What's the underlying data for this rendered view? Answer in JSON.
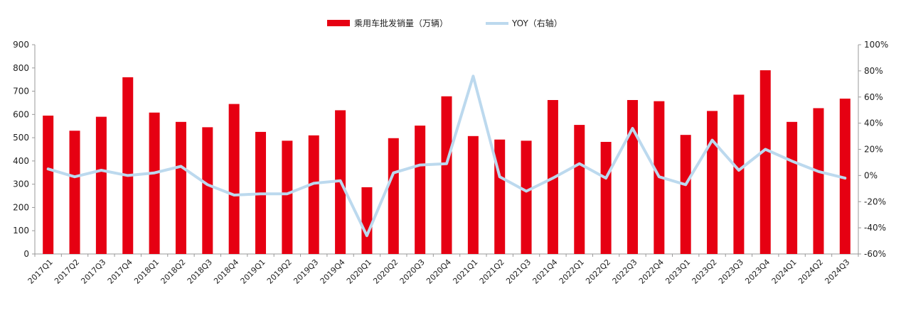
{
  "chart_data": {
    "type": "bar",
    "legend": {
      "placement": "top-center",
      "entries": [
        {
          "label": "乘用车批发销量（万辆）",
          "kind": "bar",
          "color": "#e60012"
        },
        {
          "label": "YOY（右轴）",
          "kind": "line",
          "color": "#bcd9ee"
        }
      ]
    },
    "categories": [
      "2017Q1",
      "2017Q2",
      "2017Q3",
      "2017Q4",
      "2018Q1",
      "2018Q2",
      "2018Q3",
      "2018Q4",
      "2019Q1",
      "2019Q2",
      "2019Q3",
      "2019Q4",
      "2020Q1",
      "2020Q2",
      "2020Q3",
      "2020Q4",
      "2021Q1",
      "2021Q2",
      "2021Q3",
      "2021Q4",
      "2022Q1",
      "2022Q2",
      "2022Q3",
      "2022Q4",
      "2023Q1",
      "2023Q2",
      "2023Q3",
      "2023Q4",
      "2024Q1",
      "2024Q2",
      "2024Q3"
    ],
    "series": [
      {
        "name": "乘用车批发销量（万辆）",
        "type": "bar",
        "axis": "left",
        "color": "#e60012",
        "values": [
          595,
          530,
          590,
          760,
          608,
          568,
          545,
          645,
          525,
          487,
          510,
          618,
          287,
          498,
          552,
          678,
          507,
          492,
          487,
          662,
          555,
          482,
          662,
          657,
          512,
          615,
          685,
          790,
          568,
          627,
          668
        ]
      },
      {
        "name": "YOY（右轴）",
        "type": "line",
        "axis": "right",
        "color": "#bcd9ee",
        "values": [
          5,
          -1,
          4,
          0,
          2,
          7,
          -7,
          -15,
          -14,
          -14,
          -6,
          -4,
          -46,
          2,
          8,
          9,
          76,
          -1,
          -12,
          -2,
          9,
          -2,
          36,
          -1,
          -7,
          27,
          4,
          20,
          11,
          3,
          -2
        ]
      }
    ],
    "y_left": {
      "min": 0,
      "max": 900,
      "ticks": [
        0,
        100,
        200,
        300,
        400,
        500,
        600,
        700,
        800,
        900
      ]
    },
    "y_right": {
      "min": -60,
      "max": 100,
      "ticks": [
        "-60%",
        "-40%",
        "-20%",
        "0%",
        "20%",
        "40%",
        "60%",
        "80%",
        "100%"
      ]
    },
    "grid": false
  }
}
